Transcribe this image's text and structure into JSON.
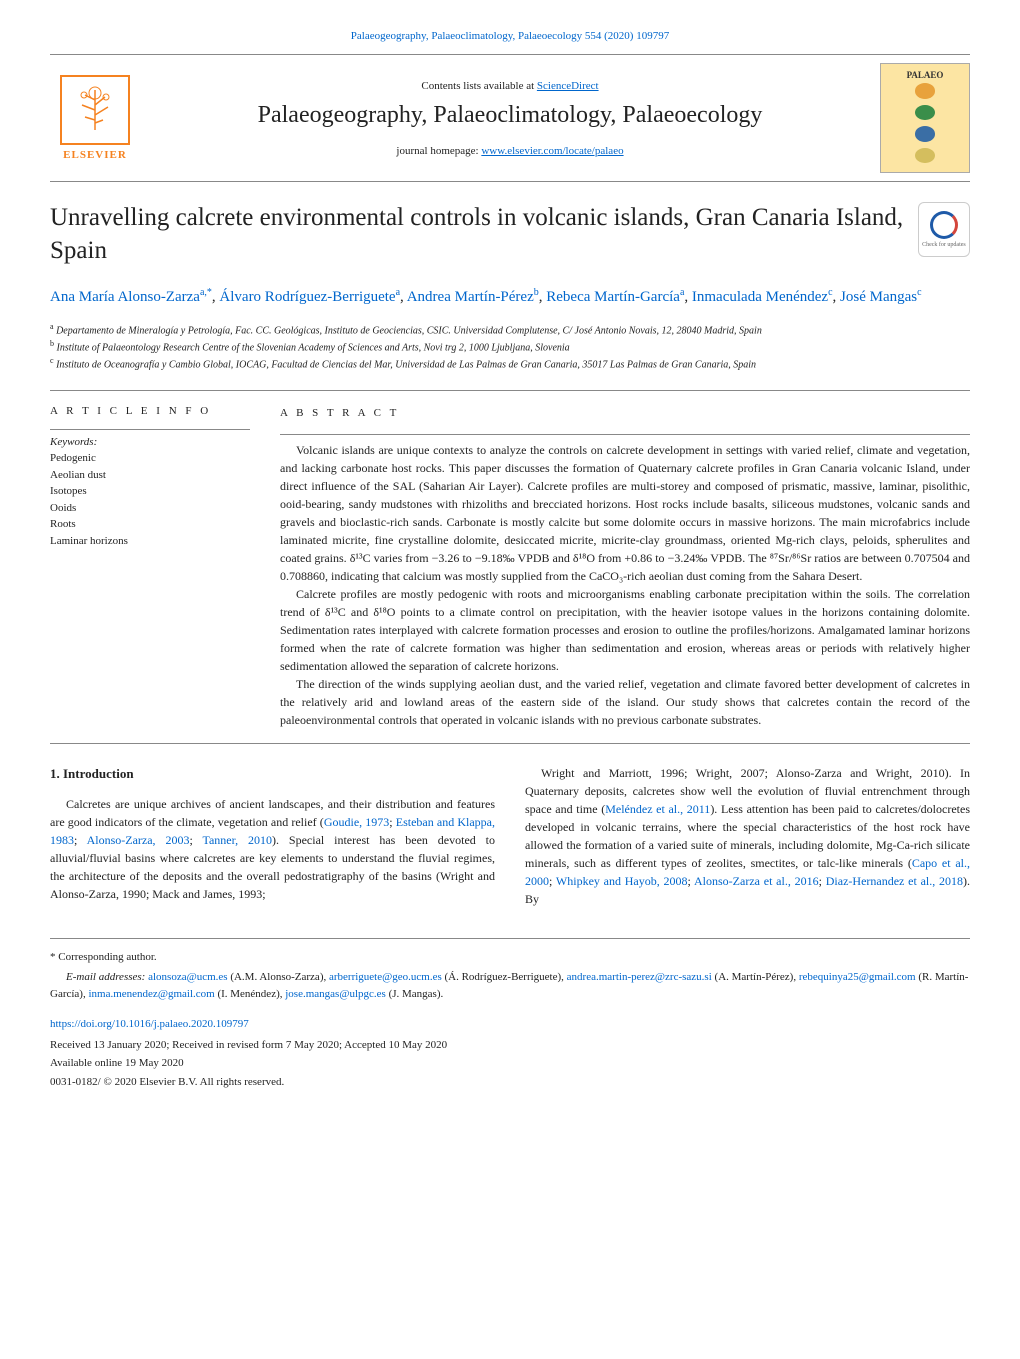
{
  "top_link": "Palaeogeography, Palaeoclimatology, Palaeoecology 554 (2020) 109797",
  "header": {
    "sciencedirect_prefix": "Contents lists available at ",
    "sciencedirect_link": "ScienceDirect",
    "journal_title": "Palaeogeography, Palaeoclimatology, Palaeoecology",
    "homepage_prefix": "journal homepage: ",
    "homepage_link": "www.elsevier.com/locate/palaeo",
    "elsevier_text": "ELSEVIER",
    "palaeo_badge_text": "PALAEO"
  },
  "badge_colors": {
    "bg": "#fce5a3",
    "globe1": "#e8a23c",
    "globe2": "#3a8e4a",
    "globe3": "#3a6ea5",
    "globe4": "#d4be5e"
  },
  "check_updates_text": "Check for updates",
  "article_title": "Unravelling calcrete environmental controls in volcanic islands, Gran Canaria Island, Spain",
  "authors_html": "Ana María Alonso-Zarza<sup>a,*</sup>, Álvaro Rodríguez-Berriguete<sup>a</sup>, Andrea Martín-Pérez<sup>b</sup>, Rebeca Martín-García<sup>a</sup>, Inmaculada Menéndez<sup>c</sup>, José Mangas<sup>c</sup>",
  "affiliations": {
    "a": "Departamento de Mineralogía y Petrología, Fac. CC. Geológicas, Instituto de Geociencias, CSIC. Universidad Complutense, C/ José Antonio Novais, 12, 28040 Madrid, Spain",
    "b": "Institute of Palaeontology Research Centre of the Slovenian Academy of Sciences and Arts, Novi trg 2, 1000 Ljubljana, Slovenia",
    "c": "Instituto de Oceanografía y Cambio Global, IOCAG, Facultad de Ciencias del Mar, Universidad de Las Palmas de Gran Canaria, 35017 Las Palmas de Gran Canaria, Spain"
  },
  "info_label": "A R T I C L E  I N F O",
  "abstract_label": "A B S T R A C T",
  "keywords_label": "Keywords:",
  "keywords": [
    "Pedogenic",
    "Aeolian dust",
    "Isotopes",
    "Ooids",
    "Roots",
    "Laminar horizons"
  ],
  "abstract_paragraphs": [
    "Volcanic islands are unique contexts to analyze the controls on calcrete development in settings with varied relief, climate and vegetation, and lacking carbonate host rocks. This paper discusses the formation of Quaternary calcrete profiles in Gran Canaria volcanic Island, under direct influence of the SAL (Saharian Air Layer). Calcrete profiles are multi-storey and composed of prismatic, massive, laminar, pisolithic, ooid-bearing, sandy mudstones with rhizoliths and brecciated horizons. Host rocks include basalts, siliceous mudstones, volcanic sands and gravels and bioclastic-rich sands. Carbonate is mostly calcite but some dolomite occurs in massive horizons. The main microfabrics include laminated micrite, fine crystalline dolomite, desiccated micrite, micrite-clay groundmass, oriented Mg-rich clays, peloids, spherulites and coated grains. δ¹³C varies from −3.26 to −9.18‰ VPDB and δ¹⁸O from +0.86 to −3.24‰ VPDB. The ⁸⁷Sr/⁸⁶Sr ratios are between 0.707504 and 0.708860, indicating that calcium was mostly supplied from the CaCO₃-rich aeolian dust coming from the Sahara Desert.",
    "Calcrete profiles are mostly pedogenic with roots and microorganisms enabling carbonate precipitation within the soils. The correlation trend of δ¹³C and δ¹⁸O points to a climate control on precipitation, with the heavier isotope values in the horizons containing dolomite. Sedimentation rates interplayed with calcrete formation processes and erosion to outline the profiles/horizons. Amalgamated laminar horizons formed when the rate of calcrete formation was higher than sedimentation and erosion, whereas areas or periods with relatively higher sedimentation allowed the separation of calcrete horizons.",
    "The direction of the winds supplying aeolian dust, and the varied relief, vegetation and climate favored better development of calcretes in the relatively arid and lowland areas of the eastern side of the island. Our study shows that calcretes contain the record of the paleoenvironmental controls that operated in volcanic islands with no previous carbonate substrates."
  ],
  "intro_heading": "1. Introduction",
  "intro_col1": "Calcretes are unique archives of ancient landscapes, and their distribution and features are good indicators of the climate, vegetation and relief (Goudie, 1973; Esteban and Klappa, 1983; Alonso-Zarza, 2003; Tanner, 2010). Special interest has been devoted to alluvial/fluvial basins where calcretes are key elements to understand the fluvial regimes, the architecture of the deposits and the overall pedostratigraphy of the basins (Wright and Alonso-Zarza, 1990; Mack and James, 1993;",
  "intro_col2": "Wright and Marriott, 1996; Wright, 2007; Alonso-Zarza and Wright, 2010). In Quaternary deposits, calcretes show well the evolution of fluvial entrenchment through space and time (Meléndez et al., 2011). Less attention has been paid to calcretes/dolocretes developed in volcanic terrains, where the special characteristics of the host rock have allowed the formation of a varied suite of minerals, including dolomite, Mg-Ca-rich silicate minerals, such as different types of zeolites, smectites, or talc-like minerals (Capo et al., 2000; Whipkey and Hayob, 2008; Alonso-Zarza et al., 2016; Diaz-Hernandez et al., 2018). By",
  "footer": {
    "corresponding": "* Corresponding author.",
    "emails_prefix": "E-mail addresses: ",
    "emails": "alonsoza@ucm.es (A.M. Alonso-Zarza), arberriguete@geo.ucm.es (Á. Rodríguez-Berriguete), andrea.martin-perez@zrc-sazu.si (A. Martín-Pérez), rebequinya25@gmail.com (R. Martín-García), inma.menendez@gmail.com (I. Menéndez), jose.mangas@ulpgc.es (J. Mangas).",
    "doi": "https://doi.org/10.1016/j.palaeo.2020.109797",
    "received": "Received 13 January 2020; Received in revised form 7 May 2020; Accepted 10 May 2020",
    "available": "Available online 19 May 2020",
    "copyright": "0031-0182/ © 2020 Elsevier B.V. All rights reserved."
  }
}
